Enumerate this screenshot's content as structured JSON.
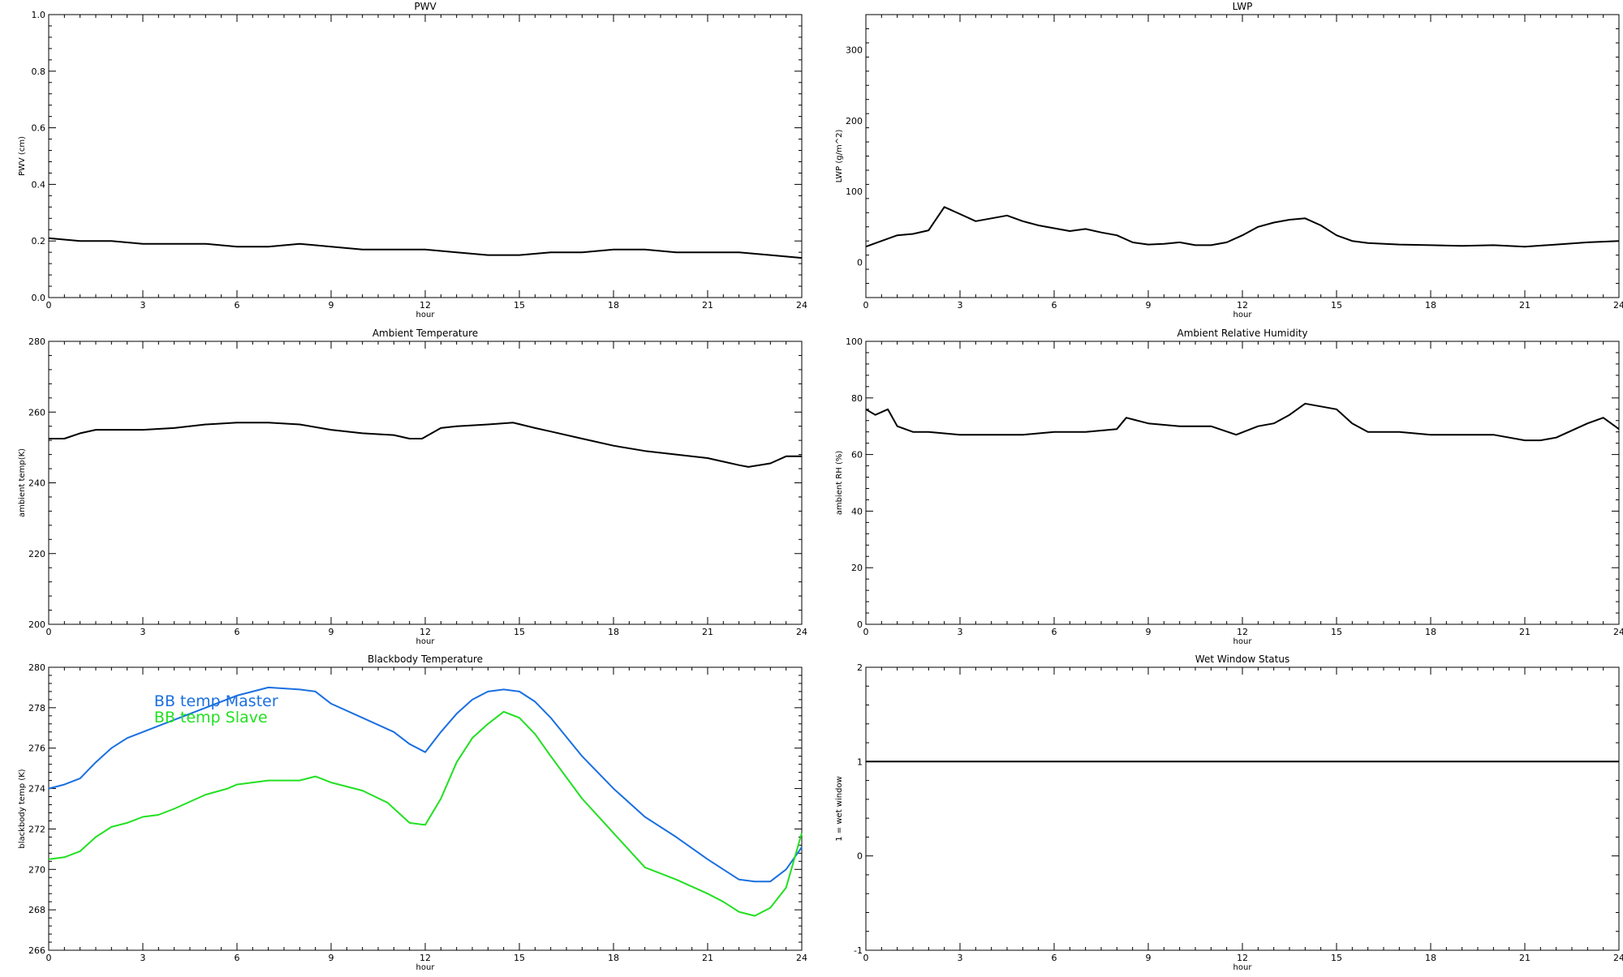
{
  "chart_data": [
    {
      "type": "line",
      "title": "PWV",
      "xlabel": "hour",
      "ylabel": "PWV (cm)",
      "xlim": [
        0,
        24
      ],
      "ylim": [
        0,
        1
      ],
      "xticks": [
        "0",
        "3",
        "6",
        "9",
        "12",
        "15",
        "18",
        "21",
        "24"
      ],
      "yticks": [
        "0.0",
        "0.2",
        "0.4",
        "0.6",
        "0.8",
        "1.0"
      ],
      "grid": false,
      "series": [
        {
          "color": "#000000",
          "x": [
            0,
            1,
            2,
            3,
            4,
            5,
            6,
            7,
            8,
            9,
            10,
            11,
            12,
            13,
            14,
            15,
            16,
            17,
            18,
            19,
            20,
            21,
            22,
            23,
            24
          ],
          "y": [
            0.21,
            0.2,
            0.2,
            0.19,
            0.19,
            0.19,
            0.18,
            0.18,
            0.19,
            0.18,
            0.17,
            0.17,
            0.17,
            0.16,
            0.15,
            0.15,
            0.16,
            0.16,
            0.17,
            0.17,
            0.16,
            0.16,
            0.16,
            0.15,
            0.14
          ]
        }
      ]
    },
    {
      "type": "line",
      "title": "LWP",
      "xlabel": "hour",
      "ylabel": "LWP (g/m^2)",
      "xlim": [
        0,
        24
      ],
      "ylim": [
        -50,
        350
      ],
      "xticks": [
        "0",
        "3",
        "6",
        "9",
        "12",
        "15",
        "18",
        "21",
        "24"
      ],
      "yticks": [
        "0",
        "100",
        "200",
        "300"
      ],
      "grid": false,
      "series": [
        {
          "color": "#000000",
          "x": [
            0,
            0.5,
            1,
            1.5,
            2,
            2.5,
            3,
            3.5,
            4,
            4.5,
            5,
            5.5,
            6,
            6.5,
            7,
            7.5,
            8,
            8.5,
            9,
            9.5,
            10,
            10.5,
            11,
            11.5,
            12,
            12.5,
            13,
            13.5,
            14,
            14.5,
            15,
            15.5,
            16,
            17,
            18,
            19,
            20,
            21,
            22,
            23,
            24
          ],
          "y": [
            22,
            30,
            38,
            40,
            45,
            78,
            68,
            58,
            62,
            66,
            58,
            52,
            48,
            44,
            47,
            42,
            38,
            28,
            25,
            26,
            28,
            24,
            24,
            28,
            38,
            50,
            56,
            60,
            62,
            52,
            38,
            30,
            27,
            25,
            24,
            23,
            24,
            22,
            25,
            28,
            30
          ]
        }
      ]
    },
    {
      "type": "line",
      "title": "Ambient Temperature",
      "xlabel": "hour",
      "ylabel": "ambient temp(K)",
      "xlim": [
        0,
        24
      ],
      "ylim": [
        200,
        280
      ],
      "xticks": [
        "0",
        "3",
        "6",
        "9",
        "12",
        "15",
        "18",
        "21",
        "24"
      ],
      "yticks": [
        "200",
        "220",
        "240",
        "260",
        "280"
      ],
      "grid": false,
      "series": [
        {
          "color": "#000000",
          "x": [
            0,
            0.5,
            1,
            1.5,
            2,
            3,
            4,
            5,
            6,
            7,
            8,
            9,
            10,
            11,
            11.5,
            11.9,
            12.5,
            13,
            14,
            14.8,
            15.5,
            16,
            17,
            18,
            19,
            20,
            21,
            22,
            22.3,
            23,
            23.5,
            24
          ],
          "y": [
            252.5,
            252.5,
            254,
            255,
            255,
            255,
            255.5,
            256.5,
            257,
            257,
            256.5,
            255,
            254,
            253.5,
            252.5,
            252.5,
            255.5,
            256,
            256.5,
            257,
            255.5,
            254.5,
            252.5,
            250.5,
            249,
            248,
            247,
            245,
            244.5,
            245.5,
            247.5,
            247.5
          ]
        }
      ]
    },
    {
      "type": "line",
      "title": "Ambient Relative Humidity",
      "xlabel": "hour",
      "ylabel": "ambient RH (%)",
      "xlim": [
        0,
        24
      ],
      "ylim": [
        0,
        100
      ],
      "xticks": [
        "0",
        "3",
        "6",
        "9",
        "12",
        "15",
        "18",
        "21",
        "24"
      ],
      "yticks": [
        "0",
        "20",
        "40",
        "60",
        "80",
        "100"
      ],
      "grid": false,
      "series": [
        {
          "color": "#000000",
          "x": [
            0,
            0.3,
            0.7,
            1,
            1.5,
            2,
            3,
            4,
            5,
            6,
            7,
            8,
            8.3,
            9,
            10,
            11,
            11.8,
            12.5,
            13,
            13.5,
            14,
            14.5,
            15,
            15.5,
            16,
            17,
            18,
            19,
            20,
            21,
            21.5,
            22,
            23,
            23.5,
            24
          ],
          "y": [
            76,
            74,
            76,
            70,
            68,
            68,
            67,
            67,
            67,
            68,
            68,
            69,
            73,
            71,
            70,
            70,
            67,
            70,
            71,
            74,
            78,
            77,
            76,
            71,
            68,
            68,
            67,
            67,
            67,
            65,
            65,
            66,
            71,
            73,
            69
          ]
        }
      ]
    },
    {
      "type": "line",
      "title": "Blackbody Temperature",
      "xlabel": "hour",
      "ylabel": "blackbody temp (K)",
      "xlim": [
        0,
        24
      ],
      "ylim": [
        266,
        280
      ],
      "xticks": [
        "0",
        "3",
        "6",
        "9",
        "12",
        "15",
        "18",
        "21",
        "24"
      ],
      "yticks": [
        "266",
        "268",
        "270",
        "272",
        "274",
        "276",
        "278",
        "280"
      ],
      "grid": false,
      "legend": "top-left",
      "series": [
        {
          "name": "BB temp Master",
          "color": "#1a6fe0",
          "x": [
            0,
            0.5,
            1,
            1.5,
            2,
            2.5,
            3,
            4,
            5,
            6,
            7,
            8,
            8.5,
            9,
            10,
            11,
            11.5,
            12,
            12.5,
            13,
            13.5,
            14,
            14.5,
            15,
            15.5,
            16,
            17,
            18,
            19,
            20,
            21,
            21.5,
            22,
            22.5,
            23,
            23.5,
            24
          ],
          "y": [
            274,
            274.2,
            274.5,
            275.3,
            276,
            276.5,
            276.8,
            277.4,
            278,
            278.6,
            279,
            278.9,
            278.8,
            278.2,
            277.5,
            276.8,
            276.2,
            275.8,
            276.8,
            277.7,
            278.4,
            278.8,
            278.9,
            278.8,
            278.3,
            277.5,
            275.6,
            274,
            272.6,
            271.6,
            270.5,
            270,
            269.5,
            269.4,
            269.4,
            270,
            271.1
          ]
        },
        {
          "name": "BB temp Slave",
          "color": "#22e022",
          "x": [
            0,
            0.5,
            1,
            1.5,
            2,
            2.5,
            3,
            3.5,
            4,
            5,
            5.7,
            6,
            7,
            8,
            8.5,
            9,
            10,
            10.8,
            11.5,
            12,
            12.5,
            13,
            13.5,
            14,
            14.5,
            15,
            15.5,
            16,
            17,
            18,
            19,
            20,
            21,
            21.5,
            22,
            22.5,
            23,
            23.5,
            24
          ],
          "y": [
            270.5,
            270.6,
            270.9,
            271.6,
            272.1,
            272.3,
            272.6,
            272.7,
            273,
            273.7,
            274,
            274.2,
            274.4,
            274.4,
            274.6,
            274.3,
            273.9,
            273.3,
            272.3,
            272.2,
            273.5,
            275.3,
            276.5,
            277.2,
            277.8,
            277.5,
            276.7,
            275.6,
            273.5,
            271.8,
            270.1,
            269.5,
            268.8,
            268.4,
            267.9,
            267.7,
            268.1,
            269.1,
            271.8
          ]
        }
      ]
    },
    {
      "type": "line",
      "title": "Wet Window Status",
      "xlabel": "hour",
      "ylabel": "1 = wet window",
      "xlim": [
        0,
        24
      ],
      "ylim": [
        -1,
        2
      ],
      "xticks": [
        "0",
        "3",
        "6",
        "9",
        "12",
        "15",
        "18",
        "21",
        "24"
      ],
      "yticks": [
        "-1",
        "0",
        "1",
        "2"
      ],
      "grid": false,
      "series": [
        {
          "color": "#000000",
          "x": [
            0,
            24
          ],
          "y": [
            1,
            1
          ]
        }
      ]
    }
  ]
}
